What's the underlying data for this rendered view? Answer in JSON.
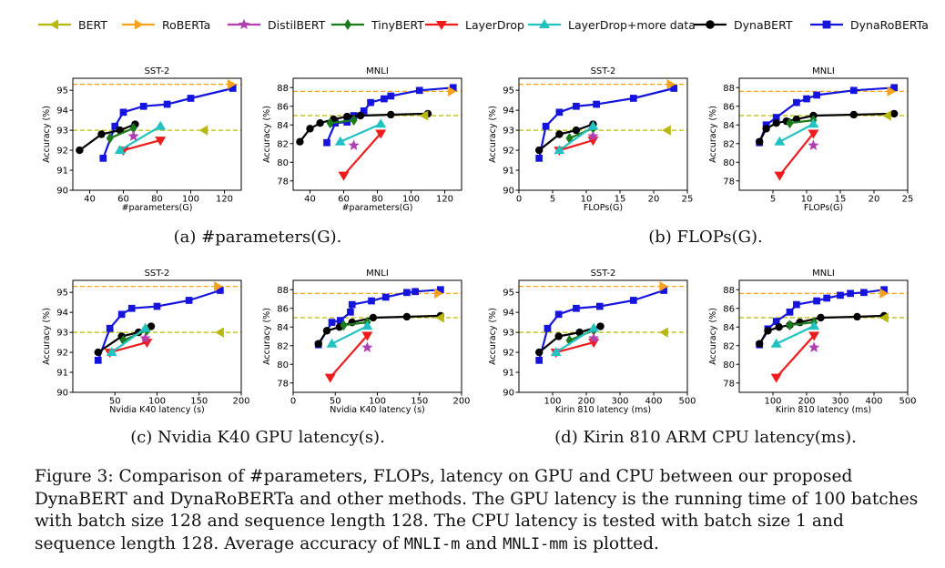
{
  "legend": [
    {
      "name": "BERT",
      "color": "#b8b80e",
      "marker": "tri-left"
    },
    {
      "name": "RoBERTa",
      "color": "#f6a21e",
      "marker": "tri-right"
    },
    {
      "name": "DistilBERT",
      "color": "#b23fb2",
      "marker": "star"
    },
    {
      "name": "TinyBERT",
      "color": "#1b7a1b",
      "marker": "diamond"
    },
    {
      "name": "LayerDrop",
      "color": "#ee1c1c",
      "marker": "tri-down"
    },
    {
      "name": "LayerDrop+more data",
      "color": "#22c2c2",
      "marker": "tri-up"
    },
    {
      "name": "DynaBERT",
      "color": "#000000",
      "marker": "circle"
    },
    {
      "name": "DynaRoBERTa",
      "color": "#1414dd",
      "marker": "square"
    }
  ],
  "subcaptions": {
    "a": "(a) #parameters(G).",
    "b": "(b) FLOPs(G).",
    "c": "(c) Nvidia K40 GPU latency(s).",
    "d": "(d) Kirin 810 ARM CPU latency(ms)."
  },
  "caption": {
    "part1": "Figure 3: Comparison of #parameters, FLOPs, latency on GPU and CPU between our proposed DynaBERT and DynaRoBERTa and other methods. The GPU latency is the running time of 100 batches with batch size 128 and sequence length 128. The CPU latency is tested with batch size 1 and sequence length 128. Average accuracy of ",
    "code1": "MNLI-m",
    "part2": " and ",
    "code2": "MNLI-mm",
    "part3": " is plotted."
  },
  "chart_data": [
    {
      "type": "line",
      "title": "SST-2",
      "xlabel": "#parameters(G)",
      "ylabel": "Accuracy (%)",
      "xlim": [
        30,
        130
      ],
      "ylim": [
        90,
        95.6
      ],
      "xticks": [
        40,
        60,
        80,
        100,
        120
      ],
      "yticks": [
        90,
        91,
        92,
        93,
        94,
        95
      ],
      "hlines": {
        "BERT": 93.0,
        "RoBERTa": 95.3
      },
      "series": [
        {
          "name": "DynaBERT",
          "x": [
            34,
            47,
            58,
            67
          ],
          "y": [
            92.0,
            92.8,
            93.0,
            93.3
          ]
        },
        {
          "name": "DynaRoBERTa",
          "x": [
            48,
            55,
            60,
            72,
            86,
            100,
            125
          ],
          "y": [
            91.6,
            93.2,
            93.9,
            94.2,
            94.3,
            94.6,
            95.1
          ]
        },
        {
          "name": "TinyBERT",
          "x": [
            52,
            66
          ],
          "y": [
            92.6,
            93.1
          ]
        },
        {
          "name": "LayerDrop",
          "x": [
            60,
            82
          ],
          "y": [
            92.0,
            92.5
          ]
        },
        {
          "name": "LayerDrop+more data",
          "x": [
            58,
            82
          ],
          "y": [
            92.0,
            93.2
          ]
        },
        {
          "name": "DistilBERT",
          "x": [
            66
          ],
          "y": [
            92.7
          ]
        },
        {
          "name": "BERT",
          "x": [
            108
          ],
          "y": [
            93.0
          ]
        },
        {
          "name": "RoBERTa",
          "x": [
            124
          ],
          "y": [
            95.3
          ]
        }
      ]
    },
    {
      "type": "line",
      "title": "MNLI",
      "xlabel": "#parameters(G)",
      "ylabel": "Accuracy (%)",
      "xlim": [
        30,
        130
      ],
      "ylim": [
        77,
        89
      ],
      "xticks": [
        40,
        60,
        80,
        100,
        120
      ],
      "yticks": [
        78,
        80,
        82,
        84,
        86,
        88
      ],
      "hlines": {
        "BERT": 85.0,
        "RoBERTa": 87.6
      },
      "series": [
        {
          "name": "DynaBERT",
          "x": [
            34,
            40,
            46,
            54,
            62,
            70,
            88,
            110
          ],
          "y": [
            82.2,
            83.6,
            84.2,
            84.6,
            84.9,
            85.0,
            85.1,
            85.2
          ]
        },
        {
          "name": "DynaRoBERTa",
          "x": [
            50,
            55,
            62,
            66,
            72,
            76,
            84,
            88,
            105,
            125
          ],
          "y": [
            82.1,
            84.2,
            84.3,
            85.0,
            85.5,
            86.4,
            86.8,
            87.1,
            87.7,
            88.0
          ]
        },
        {
          "name": "TinyBERT",
          "x": [
            52,
            66
          ],
          "y": [
            84.2,
            84.5
          ]
        },
        {
          "name": "LayerDrop",
          "x": [
            60,
            82
          ],
          "y": [
            78.6,
            83.1
          ]
        },
        {
          "name": "LayerDrop+more data",
          "x": [
            58,
            82
          ],
          "y": [
            82.2,
            84.1
          ]
        },
        {
          "name": "DistilBERT",
          "x": [
            66
          ],
          "y": [
            81.8
          ]
        },
        {
          "name": "BERT",
          "x": [
            108
          ],
          "y": [
            85.0
          ]
        },
        {
          "name": "RoBERTa",
          "x": [
            124
          ],
          "y": [
            87.6
          ]
        }
      ]
    },
    {
      "type": "line",
      "title": "SST-2",
      "xlabel": "FLOPs(G)",
      "ylabel": "Accuracy (%)",
      "xlim": [
        0,
        25
      ],
      "ylim": [
        90,
        95.6
      ],
      "xticks": [
        0,
        5,
        10,
        15,
        20,
        25
      ],
      "yticks": [
        90,
        91,
        92,
        93,
        94,
        95
      ],
      "hlines": {
        "BERT": 93.0,
        "RoBERTa": 95.3
      },
      "series": [
        {
          "name": "DynaBERT",
          "x": [
            3,
            6,
            8.5,
            11
          ],
          "y": [
            92.0,
            92.8,
            93.0,
            93.3
          ]
        },
        {
          "name": "DynaRoBERTa",
          "x": [
            3,
            4,
            6,
            8.5,
            11.5,
            17,
            23
          ],
          "y": [
            91.6,
            93.2,
            93.9,
            94.2,
            94.3,
            94.6,
            95.1
          ]
        },
        {
          "name": "TinyBERT",
          "x": [
            7.5,
            11
          ],
          "y": [
            92.6,
            93.1
          ]
        },
        {
          "name": "LayerDrop",
          "x": [
            6,
            11
          ],
          "y": [
            92.0,
            92.5
          ]
        },
        {
          "name": "LayerDrop+more data",
          "x": [
            6,
            11
          ],
          "y": [
            92.0,
            93.2
          ]
        },
        {
          "name": "DistilBERT",
          "x": [
            11
          ],
          "y": [
            92.7
          ]
        },
        {
          "name": "BERT",
          "x": [
            22
          ],
          "y": [
            93.0
          ]
        },
        {
          "name": "RoBERTa",
          "x": [
            22.5
          ],
          "y": [
            95.3
          ]
        }
      ]
    },
    {
      "type": "line",
      "title": "MNLI",
      "xlabel": "FLOPs(G)",
      "ylabel": "Accuracy (%)",
      "xlim": [
        0,
        25
      ],
      "ylim": [
        77,
        89
      ],
      "xticks": [
        5,
        10,
        15,
        20,
        25
      ],
      "yticks": [
        78,
        80,
        82,
        84,
        86,
        88
      ],
      "hlines": {
        "BERT": 85.0,
        "RoBERTa": 87.6
      },
      "series": [
        {
          "name": "DynaBERT",
          "x": [
            3,
            4,
            5.5,
            7,
            8.5,
            11,
            17,
            23
          ],
          "y": [
            82.2,
            83.6,
            84.2,
            84.4,
            84.6,
            85.0,
            85.1,
            85.2
          ]
        },
        {
          "name": "DynaRoBERTa",
          "x": [
            3,
            4,
            5.5,
            8.5,
            10,
            11.5,
            17,
            23
          ],
          "y": [
            82.1,
            84.0,
            84.8,
            86.4,
            86.8,
            87.2,
            87.7,
            88.0
          ]
        },
        {
          "name": "TinyBERT",
          "x": [
            7.5,
            11
          ],
          "y": [
            84.2,
            84.5
          ]
        },
        {
          "name": "LayerDrop",
          "x": [
            6,
            11
          ],
          "y": [
            78.6,
            83.1
          ]
        },
        {
          "name": "LayerDrop+more data",
          "x": [
            6,
            11
          ],
          "y": [
            82.2,
            84.1
          ]
        },
        {
          "name": "DistilBERT",
          "x": [
            11
          ],
          "y": [
            81.8
          ]
        },
        {
          "name": "BERT",
          "x": [
            22
          ],
          "y": [
            85.0
          ]
        },
        {
          "name": "RoBERTa",
          "x": [
            22.5
          ],
          "y": [
            87.6
          ]
        }
      ]
    },
    {
      "type": "line",
      "title": "SST-2",
      "xlabel": "Nvidia K40 latency (s)",
      "ylabel": "Accuracy (%)",
      "xlim": [
        0,
        200
      ],
      "ylim": [
        90,
        95.6
      ],
      "xticks": [
        50,
        100,
        150,
        200
      ],
      "yticks": [
        90,
        91,
        92,
        93,
        94,
        95
      ],
      "hlines": {
        "BERT": 93.0,
        "RoBERTa": 95.3
      },
      "series": [
        {
          "name": "DynaBERT",
          "x": [
            30,
            58,
            78,
            93
          ],
          "y": [
            92.0,
            92.8,
            93.0,
            93.3
          ]
        },
        {
          "name": "DynaRoBERTa",
          "x": [
            30,
            44,
            58,
            70,
            100,
            138,
            175
          ],
          "y": [
            91.6,
            93.2,
            93.9,
            94.2,
            94.3,
            94.6,
            95.1
          ]
        },
        {
          "name": "TinyBERT",
          "x": [
            60,
            88
          ],
          "y": [
            92.6,
            93.1
          ]
        },
        {
          "name": "LayerDrop",
          "x": [
            44,
            88
          ],
          "y": [
            92.0,
            92.5
          ]
        },
        {
          "name": "LayerDrop+more data",
          "x": [
            46,
            86
          ],
          "y": [
            92.0,
            93.2
          ]
        },
        {
          "name": "DistilBERT",
          "x": [
            86
          ],
          "y": [
            92.7
          ]
        },
        {
          "name": "BERT",
          "x": [
            175
          ],
          "y": [
            93.0
          ]
        },
        {
          "name": "RoBERTa",
          "x": [
            172
          ],
          "y": [
            95.3
          ]
        }
      ]
    },
    {
      "type": "line",
      "title": "MNLI",
      "xlabel": "Nvidia K40 latency (s)",
      "ylabel": "Accuracy (%)",
      "xlim": [
        0,
        200
      ],
      "ylim": [
        77,
        89
      ],
      "xticks": [
        0,
        50,
        100,
        150,
        200
      ],
      "yticks": [
        78,
        80,
        82,
        84,
        86,
        88
      ],
      "hlines": {
        "BERT": 85.0,
        "RoBERTa": 87.6
      },
      "series": [
        {
          "name": "DynaBERT",
          "x": [
            30,
            40,
            55,
            70,
            95,
            135,
            175
          ],
          "y": [
            82.2,
            83.6,
            84.0,
            84.5,
            85.0,
            85.1,
            85.2
          ]
        },
        {
          "name": "DynaRoBERTa",
          "x": [
            30,
            46,
            56,
            68,
            70,
            93,
            110,
            135,
            145,
            175
          ],
          "y": [
            82.1,
            84.5,
            84.7,
            85.6,
            86.4,
            86.8,
            87.2,
            87.7,
            87.8,
            88.0
          ]
        },
        {
          "name": "TinyBERT",
          "x": [
            60,
            88
          ],
          "y": [
            84.2,
            84.5
          ]
        },
        {
          "name": "LayerDrop",
          "x": [
            44,
            88
          ],
          "y": [
            78.6,
            83.1
          ]
        },
        {
          "name": "LayerDrop+more data",
          "x": [
            46,
            88
          ],
          "y": [
            82.2,
            84.1
          ]
        },
        {
          "name": "DistilBERT",
          "x": [
            88
          ],
          "y": [
            81.8
          ]
        },
        {
          "name": "BERT",
          "x": [
            175
          ],
          "y": [
            85.0
          ]
        },
        {
          "name": "RoBERTa",
          "x": [
            172
          ],
          "y": [
            87.6
          ]
        }
      ]
    },
    {
      "type": "line",
      "title": "SST-2",
      "xlabel": "Kirin 810 latency (ms)",
      "ylabel": "Accuracy (%)",
      "xlim": [
        0,
        500
      ],
      "ylim": [
        90,
        95.6
      ],
      "xticks": [
        100,
        200,
        300,
        400,
        500
      ],
      "yticks": [
        90,
        91,
        92,
        93,
        94,
        95
      ],
      "hlines": {
        "BERT": 93.0,
        "RoBERTa": 95.3
      },
      "series": [
        {
          "name": "DynaBERT",
          "x": [
            60,
            118,
            180,
            242
          ],
          "y": [
            92.0,
            92.8,
            93.0,
            93.3
          ]
        },
        {
          "name": "DynaRoBERTa",
          "x": [
            60,
            85,
            118,
            170,
            240,
            340,
            430
          ],
          "y": [
            91.6,
            93.2,
            93.9,
            94.2,
            94.3,
            94.6,
            95.1
          ]
        },
        {
          "name": "TinyBERT",
          "x": [
            150,
            222
          ],
          "y": [
            92.6,
            93.1
          ]
        },
        {
          "name": "LayerDrop",
          "x": [
            110,
            222
          ],
          "y": [
            92.0,
            92.5
          ]
        },
        {
          "name": "LayerDrop+more data",
          "x": [
            110,
            222
          ],
          "y": [
            92.0,
            93.2
          ]
        },
        {
          "name": "DistilBERT",
          "x": [
            222
          ],
          "y": [
            92.7
          ]
        },
        {
          "name": "BERT",
          "x": [
            432
          ],
          "y": [
            93.0
          ]
        },
        {
          "name": "RoBERTa",
          "x": [
            428
          ],
          "y": [
            95.3
          ]
        }
      ]
    },
    {
      "type": "line",
      "title": "MNLI",
      "xlabel": "Kirin 810 latency (ms)",
      "ylabel": "Accuracy (%)",
      "xlim": [
        0,
        500
      ],
      "ylim": [
        77,
        89
      ],
      "xticks": [
        100,
        200,
        300,
        400,
        500
      ],
      "yticks": [
        78,
        80,
        82,
        84,
        86,
        88
      ],
      "hlines": {
        "BERT": 85.0,
        "RoBERTa": 87.6
      },
      "series": [
        {
          "name": "DynaBERT",
          "x": [
            60,
            85,
            118,
            150,
            180,
            242,
            350,
            430
          ],
          "y": [
            82.2,
            83.6,
            84.0,
            84.2,
            84.5,
            85.0,
            85.1,
            85.2
          ]
        },
        {
          "name": "DynaRoBERTa",
          "x": [
            60,
            85,
            110,
            150,
            170,
            230,
            260,
            300,
            330,
            370,
            430
          ],
          "y": [
            82.1,
            83.8,
            84.6,
            85.6,
            86.4,
            86.8,
            87.1,
            87.4,
            87.6,
            87.7,
            88.0
          ]
        },
        {
          "name": "TinyBERT",
          "x": [
            150,
            222
          ],
          "y": [
            84.2,
            84.5
          ]
        },
        {
          "name": "LayerDrop",
          "x": [
            110,
            222
          ],
          "y": [
            78.6,
            83.1
          ]
        },
        {
          "name": "LayerDrop+more data",
          "x": [
            110,
            222
          ],
          "y": [
            82.2,
            84.1
          ]
        },
        {
          "name": "DistilBERT",
          "x": [
            222
          ],
          "y": [
            81.8
          ]
        },
        {
          "name": "BERT",
          "x": [
            432
          ],
          "y": [
            85.0
          ]
        },
        {
          "name": "RoBERTa",
          "x": [
            428
          ],
          "y": [
            87.6
          ]
        }
      ]
    }
  ]
}
